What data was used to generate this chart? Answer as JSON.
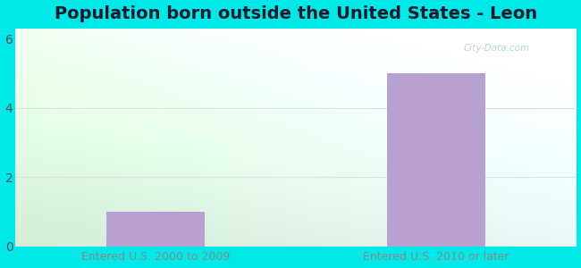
{
  "title": "Population born outside the United States - Leon",
  "categories": [
    "Entered U.S. 2000 to 2009",
    "Entered U.S. 2010 or later"
  ],
  "values": [
    1.0,
    5.0
  ],
  "bar_color": "#b8a0d0",
  "background_color": "#00e8e8",
  "yticks": [
    0,
    2,
    4,
    6
  ],
  "ylim": [
    0,
    6.3
  ],
  "title_fontsize": 14,
  "tick_fontsize": 10,
  "xlabel_fontsize": 9,
  "xlabel_color": "#888888",
  "watermark": "City-Data.com",
  "grid_color": "#e0e0e0",
  "bar_positions": [
    0.5,
    1.5
  ],
  "bar_width": 0.35,
  "xlim": [
    0,
    2
  ]
}
